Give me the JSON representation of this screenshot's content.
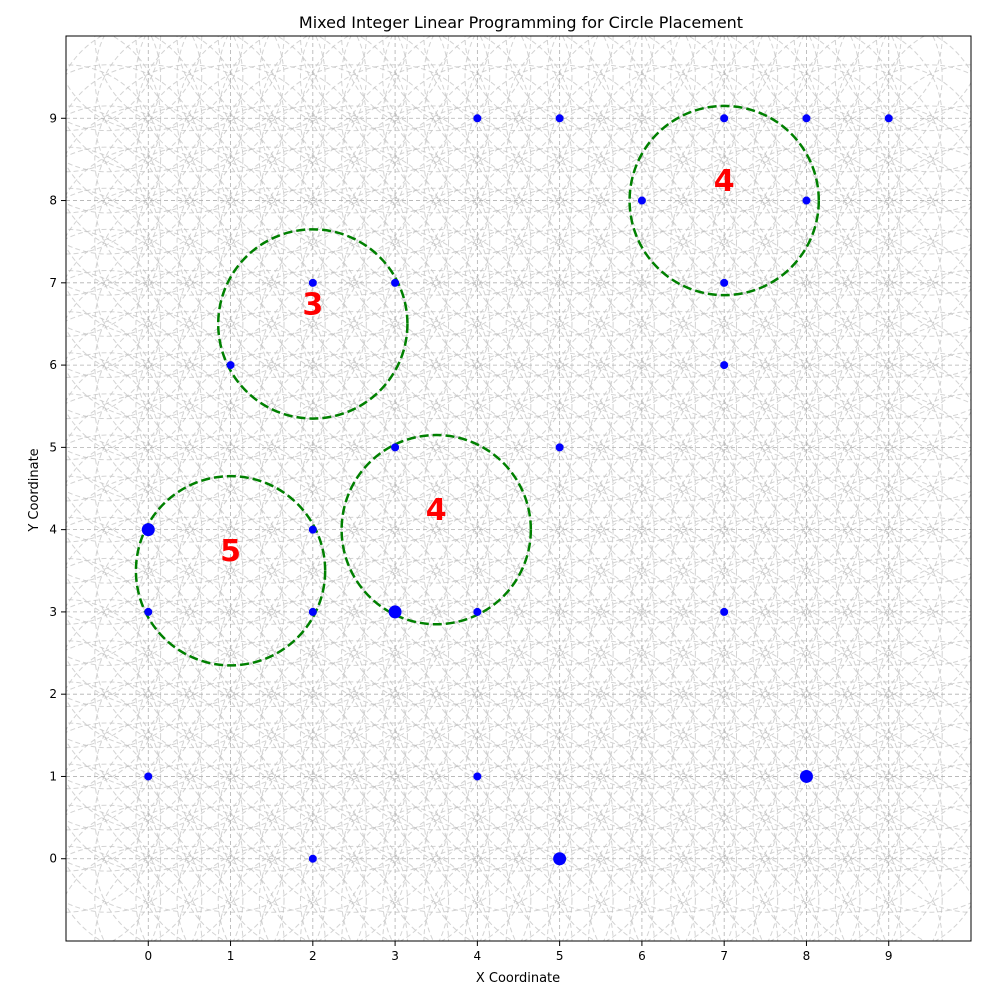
{
  "chart_data": {
    "type": "scatter",
    "title": "Mixed Integer Linear Programming for Circle Placement",
    "xlabel": "X Coordinate",
    "ylabel": "Y Coordinate",
    "xlim": [
      -1,
      10
    ],
    "ylim": [
      -1,
      10
    ],
    "xticks": [
      "0",
      "1",
      "2",
      "3",
      "4",
      "5",
      "6",
      "7",
      "8",
      "9"
    ],
    "yticks": [
      "0",
      "1",
      "2",
      "3",
      "4",
      "5",
      "6",
      "7",
      "8",
      "9"
    ],
    "grid": true,
    "candidate_circle_radius": 1.15,
    "candidate_circle_step": 0.5,
    "colors": {
      "points": "#0000ff",
      "selected_circles": "#008000",
      "count_labels": "#ff0000",
      "candidate_circles": "#c0c0c0",
      "grid": "#b0b0b0"
    },
    "points": [
      {
        "x": 4,
        "y": 9,
        "weight": 1
      },
      {
        "x": 5,
        "y": 9,
        "weight": 1
      },
      {
        "x": 7,
        "y": 9,
        "weight": 1
      },
      {
        "x": 8,
        "y": 9,
        "weight": 1
      },
      {
        "x": 9,
        "y": 9,
        "weight": 1
      },
      {
        "x": 6,
        "y": 8,
        "weight": 1
      },
      {
        "x": 8,
        "y": 8,
        "weight": 1
      },
      {
        "x": 2,
        "y": 7,
        "weight": 1
      },
      {
        "x": 3,
        "y": 7,
        "weight": 1
      },
      {
        "x": 7,
        "y": 7,
        "weight": 1
      },
      {
        "x": 1,
        "y": 6,
        "weight": 1
      },
      {
        "x": 7,
        "y": 6,
        "weight": 1
      },
      {
        "x": 3,
        "y": 5,
        "weight": 1
      },
      {
        "x": 5,
        "y": 5,
        "weight": 1
      },
      {
        "x": 0,
        "y": 4,
        "weight": 2
      },
      {
        "x": 2,
        "y": 4,
        "weight": 1
      },
      {
        "x": 0,
        "y": 3,
        "weight": 1
      },
      {
        "x": 2,
        "y": 3,
        "weight": 1
      },
      {
        "x": 3,
        "y": 3,
        "weight": 2
      },
      {
        "x": 4,
        "y": 3,
        "weight": 1
      },
      {
        "x": 7,
        "y": 3,
        "weight": 1
      },
      {
        "x": 0,
        "y": 1,
        "weight": 1
      },
      {
        "x": 4,
        "y": 1,
        "weight": 1
      },
      {
        "x": 8,
        "y": 1,
        "weight": 2
      },
      {
        "x": 2,
        "y": 0,
        "weight": 1
      },
      {
        "x": 5,
        "y": 0,
        "weight": 2
      }
    ],
    "selected_circles": [
      {
        "cx": 7,
        "cy": 8,
        "r": 1.15,
        "label": "4"
      },
      {
        "cx": 2,
        "cy": 6.5,
        "r": 1.15,
        "label": "3"
      },
      {
        "cx": 3.5,
        "cy": 4,
        "r": 1.15,
        "label": "4"
      },
      {
        "cx": 1,
        "cy": 3.5,
        "r": 1.15,
        "label": "5"
      }
    ]
  }
}
